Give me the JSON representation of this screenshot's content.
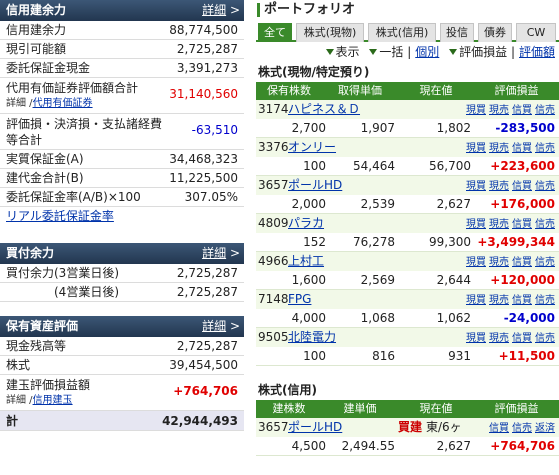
{
  "credit": {
    "title": "信用建余力",
    "detail": "詳細",
    "rows": [
      {
        "label": "信用建余力",
        "value": "88,774,500"
      },
      {
        "label": "現引可能額",
        "value": "2,725,287"
      },
      {
        "label": "委託保証金現金",
        "value": "3,391,273"
      }
    ],
    "collateral": {
      "label": "代用有価証券評価額合計",
      "value": "31,140,560",
      "sub_prefix": "詳細 /",
      "sub_link": "代用有価証券"
    },
    "loss": {
      "label1": "評価損・決済損・支払諸経費",
      "label2": "等合計",
      "value": "-63,510"
    },
    "rows2": [
      {
        "label": "実質保証金(A)",
        "value": "34,468,323"
      },
      {
        "label": "建代金合計(B)",
        "value": "11,225,500"
      },
      {
        "label": "委託保証金率(A/B)×100",
        "value": "307.05%"
      }
    ],
    "link": "リアル委託保証金率"
  },
  "buying": {
    "title": "買付余力",
    "detail": "詳細",
    "rows": [
      {
        "label": "買付余力(3営業日後)",
        "value": "2,725,287"
      },
      {
        "label": "(4営業日後)",
        "value": "2,725,287"
      }
    ]
  },
  "assets": {
    "title": "保有資産評価",
    "detail": "詳細",
    "rows": [
      {
        "label": "現金残高等",
        "value": "2,725,287"
      },
      {
        "label": "株式",
        "value": "39,454,500"
      }
    ],
    "margin": {
      "label": "建玉評価損益額",
      "value": "+764,706",
      "sub_prefix": "詳細 /",
      "sub_link": "信用建玉"
    },
    "total": {
      "label": "計",
      "value": "42,944,493"
    }
  },
  "portfolio": {
    "title": "ポートフォリオ",
    "tabs": [
      "全て",
      "株式(現物)",
      "株式(信用)",
      "投信",
      "債券",
      "CW"
    ],
    "controls": {
      "display": "表示",
      "bulk": "一括",
      "individual": "個別",
      "pl": "評価損益",
      "pl_link": "評価額"
    },
    "actions": [
      "現買",
      "現売",
      "信買",
      "信売"
    ],
    "cash": {
      "title": "株式(現物/特定預り)",
      "headers": [
        "保有株数",
        "取得単価",
        "現在値",
        "評価損益"
      ],
      "rows": [
        {
          "code": "3174",
          "name": "ハピネス＆Ｄ",
          "qty": "2,700",
          "cost": "1,907",
          "price": "1,802",
          "pl": "-283,500"
        },
        {
          "code": "3376",
          "name": "オンリー",
          "qty": "100",
          "cost": "54,464",
          "price": "56,700",
          "pl": "+223,600"
        },
        {
          "code": "3657",
          "name": "ポールHD",
          "qty": "2,000",
          "cost": "2,539",
          "price": "2,627",
          "pl": "+176,000"
        },
        {
          "code": "4809",
          "name": "パラカ",
          "qty": "152",
          "cost": "76,278",
          "price": "99,300",
          "pl": "+3,499,344"
        },
        {
          "code": "4966",
          "name": "上村工",
          "qty": "1,600",
          "cost": "2,569",
          "price": "2,644",
          "pl": "+120,000"
        },
        {
          "code": "7148",
          "name": "FPG",
          "qty": "4,000",
          "cost": "1,068",
          "price": "1,062",
          "pl": "-24,000"
        },
        {
          "code": "9505",
          "name": "北陸電力",
          "qty": "100",
          "cost": "816",
          "price": "931",
          "pl": "+11,500"
        }
      ]
    },
    "margin": {
      "title": "株式(信用)",
      "headers": [
        "建株数",
        "建単価",
        "現在値",
        "評価損益"
      ],
      "actions": [
        "信買",
        "信売",
        "返済"
      ],
      "rows": [
        {
          "code": "3657",
          "name": "ポールHD",
          "side": "買建",
          "market": "東/6ヶ",
          "qty": "4,500",
          "cost": "2,494.55",
          "price": "2,627",
          "pl": "+764,706"
        }
      ]
    }
  }
}
